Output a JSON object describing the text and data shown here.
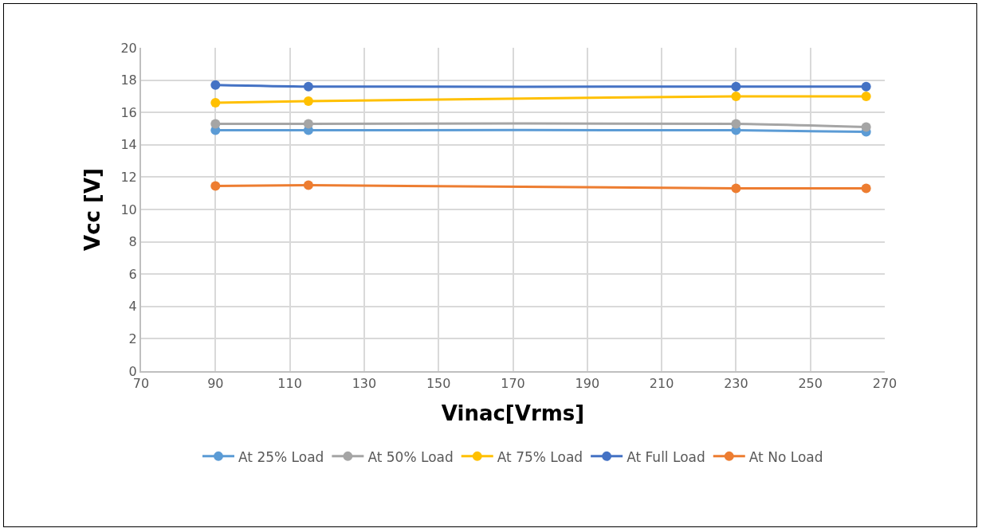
{
  "chart_data": {
    "type": "line",
    "xlabel": "Vinac[Vrms]",
    "ylabel": "Vcc [V]",
    "x": [
      90,
      115,
      230,
      265
    ],
    "series": [
      {
        "name": "At 25% Load",
        "color": "#5b9bd5",
        "values": [
          14.9,
          14.9,
          14.9,
          14.8
        ]
      },
      {
        "name": "At 50% Load",
        "color": "#a5a5a5",
        "values": [
          15.3,
          15.3,
          15.3,
          15.1
        ]
      },
      {
        "name": "At 75% Load",
        "color": "#ffc000",
        "values": [
          16.6,
          16.7,
          17.0,
          17.0
        ]
      },
      {
        "name": "At Full Load",
        "color": "#4472c4",
        "values": [
          17.7,
          17.6,
          17.6,
          17.6
        ]
      },
      {
        "name": "At No Load",
        "color": "#ed7d31",
        "values": [
          11.45,
          11.5,
          11.3,
          11.3
        ]
      }
    ],
    "xlim": [
      70,
      270
    ],
    "xticks": [
      70,
      90,
      110,
      130,
      150,
      170,
      190,
      210,
      230,
      250,
      270
    ],
    "ylim": [
      0,
      20
    ],
    "yticks": [
      0,
      2,
      4,
      6,
      8,
      10,
      12,
      14,
      16,
      18,
      20
    ],
    "grid": true,
    "legend": "bottom",
    "marker": "circle",
    "line_style": "solid"
  }
}
